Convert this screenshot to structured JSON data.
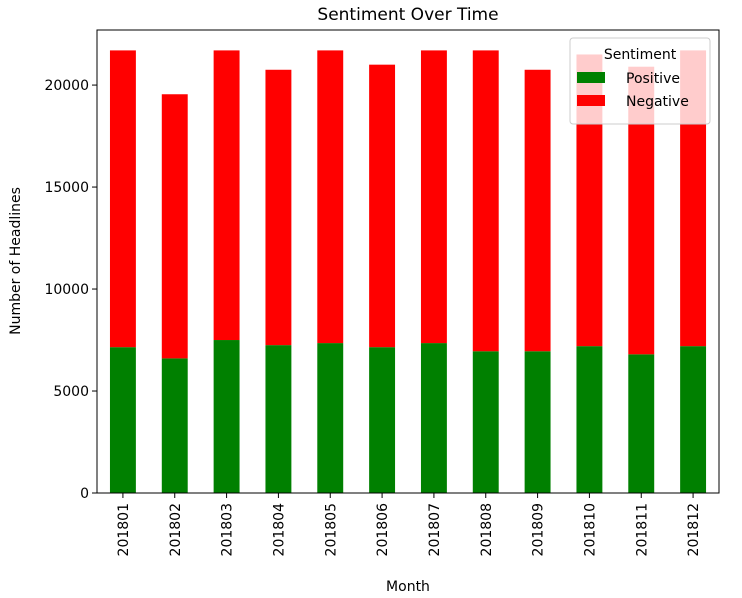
{
  "chart_data": {
    "type": "bar",
    "stacked": true,
    "title": "Sentiment Over Time",
    "xlabel": "Month",
    "ylabel": "Number of Headlines",
    "categories": [
      "201801",
      "201802",
      "201803",
      "201804",
      "201805",
      "201806",
      "201807",
      "201808",
      "201809",
      "201810",
      "201811",
      "201812"
    ],
    "series": [
      {
        "name": "Positive",
        "color": "#008000",
        "values": [
          7150,
          6600,
          7500,
          7250,
          7350,
          7150,
          7350,
          6950,
          6950,
          7200,
          6800,
          7200
        ]
      },
      {
        "name": "Negative",
        "color": "#ff0000",
        "values": [
          14550,
          12950,
          14200,
          13500,
          14350,
          13850,
          14350,
          14750,
          13800,
          14300,
          14100,
          14500
        ]
      }
    ],
    "ylim": [
      0,
      22700
    ],
    "yticks": [
      0,
      5000,
      10000,
      15000,
      20000
    ],
    "ytick_labels": [
      "0",
      "5000",
      "10000",
      "15000",
      "20000"
    ],
    "grid": false,
    "legend": {
      "title": "Sentiment",
      "position": "top-right"
    }
  }
}
